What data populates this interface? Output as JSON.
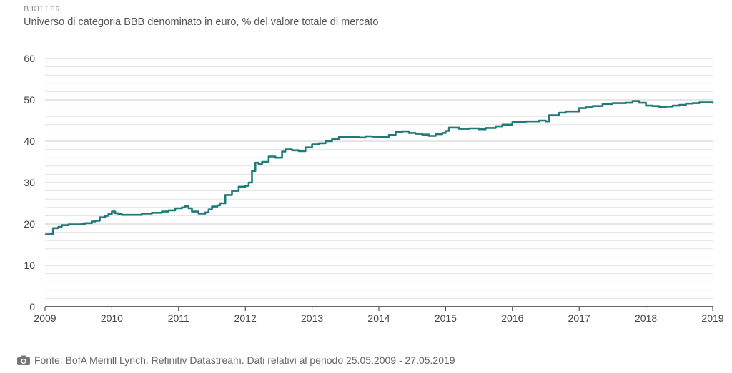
{
  "header": {
    "kicker": "B KILLER",
    "subtitle": "Universo di categoria BBB denominato in euro, % del valore totale di mercato"
  },
  "footer": {
    "source": "Fonte: BofA Merrill Lynch, Refinitiv Datastream. Dati relativi al periodo 25.05.2009 - 27.05.2019"
  },
  "colors": {
    "line": "#1f7a78",
    "grid": "#cccccc",
    "axis": "#333333"
  },
  "chart_data": {
    "type": "line",
    "xlabel": "",
    "ylabel": "",
    "xlim": [
      2009,
      2019
    ],
    "ylim": [
      0,
      60
    ],
    "xticks": [
      "2009",
      "2010",
      "2011",
      "2012",
      "2013",
      "2014",
      "2015",
      "2016",
      "2017",
      "2018",
      "2019"
    ],
    "yticks": [
      "0",
      "10",
      "20",
      "30",
      "40",
      "50",
      "60"
    ],
    "grid": true,
    "series": [
      {
        "x": [
          2009.0,
          2009.08,
          2009.12,
          2009.2,
          2009.25,
          2009.35,
          2009.45,
          2009.55,
          2009.6,
          2009.7,
          2009.75,
          2009.82,
          2009.9,
          2009.95,
          2010.0,
          2010.05,
          2010.1,
          2010.15,
          2010.3,
          2010.45,
          2010.6,
          2010.75,
          2010.85,
          2010.95,
          2011.05,
          2011.1,
          2011.15,
          2011.2,
          2011.3,
          2011.4,
          2011.45,
          2011.5,
          2011.58,
          2011.62,
          2011.7,
          2011.8,
          2011.9,
          2012.0,
          2012.05,
          2012.1,
          2012.15,
          2012.2,
          2012.25,
          2012.35,
          2012.45,
          2012.55,
          2012.6,
          2012.7,
          2012.8,
          2012.9,
          2013.0,
          2013.1,
          2013.2,
          2013.3,
          2013.4,
          2013.5,
          2013.6,
          2013.7,
          2013.8,
          2013.9,
          2014.0,
          2014.15,
          2014.25,
          2014.35,
          2014.45,
          2014.55,
          2014.65,
          2014.75,
          2014.85,
          2014.95,
          2015.0,
          2015.05,
          2015.2,
          2015.35,
          2015.5,
          2015.6,
          2015.75,
          2015.85,
          2016.0,
          2016.2,
          2016.4,
          2016.5,
          2016.55,
          2016.7,
          2016.8,
          2017.0,
          2017.1,
          2017.2,
          2017.35,
          2017.5,
          2017.7,
          2017.8,
          2017.9,
          2018.0,
          2018.1,
          2018.2,
          2018.3,
          2018.4,
          2018.5,
          2018.6,
          2018.7,
          2018.8,
          2018.9,
          2019.0
        ],
        "y": [
          17.5,
          17.6,
          19.0,
          19.3,
          19.7,
          19.9,
          19.9,
          20.0,
          20.2,
          20.6,
          20.8,
          21.6,
          22.0,
          22.4,
          23.0,
          22.6,
          22.4,
          22.2,
          22.2,
          22.5,
          22.7,
          23.0,
          23.3,
          23.8,
          24.0,
          24.3,
          23.8,
          23.0,
          22.5,
          22.8,
          23.5,
          24.2,
          24.5,
          25.0,
          27.0,
          28.0,
          29.0,
          29.2,
          30.0,
          32.8,
          34.8,
          34.5,
          35.0,
          36.3,
          36.0,
          37.5,
          38.0,
          37.8,
          37.6,
          38.5,
          39.2,
          39.5,
          40.0,
          40.5,
          41.0,
          41.0,
          41.0,
          40.9,
          41.2,
          41.1,
          41.0,
          41.5,
          42.2,
          42.4,
          42.0,
          41.8,
          41.6,
          41.3,
          41.7,
          42.0,
          42.5,
          43.3,
          43.0,
          43.1,
          42.9,
          43.2,
          43.6,
          44.0,
          44.6,
          44.8,
          45.0,
          44.8,
          46.3,
          46.9,
          47.2,
          48.0,
          48.2,
          48.5,
          49.0,
          49.2,
          49.3,
          49.7,
          49.3,
          48.6,
          48.5,
          48.3,
          48.4,
          48.6,
          48.8,
          49.1,
          49.2,
          49.4,
          49.4,
          49.1
        ]
      }
    ]
  }
}
